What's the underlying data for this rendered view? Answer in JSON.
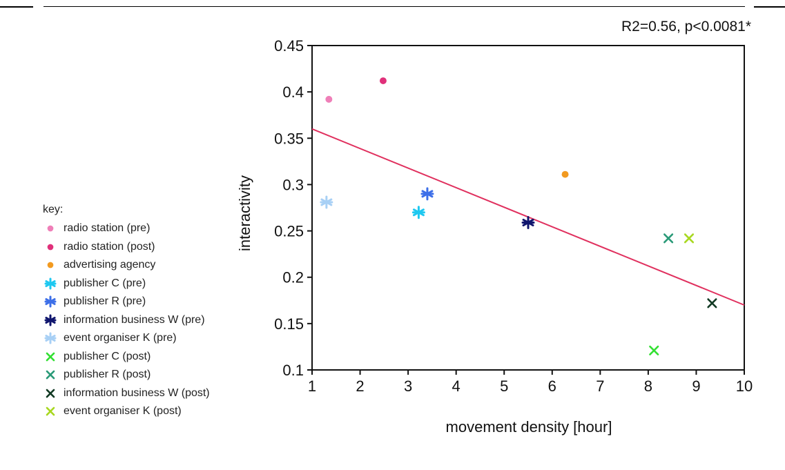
{
  "chart_data": {
    "type": "scatter",
    "title": "",
    "annotation": "R2=0.56, p<0.0081*",
    "xlabel": "movement density [hour]",
    "ylabel": "interactivity",
    "xlim": [
      1,
      10
    ],
    "ylim": [
      0.1,
      0.45
    ],
    "x_ticks": [
      "1",
      "2",
      "3",
      "4",
      "5",
      "6",
      "7",
      "8",
      "9",
      "10"
    ],
    "y_ticks": [
      "0.1",
      "0.15",
      "0.2",
      "0.25",
      "0.3",
      "0.35",
      "0.4",
      "0.45"
    ],
    "grid": false,
    "legend_title": "key:",
    "legend_position": "left",
    "trend_line": {
      "color": "#e0305e",
      "points": [
        [
          1,
          0.36
        ],
        [
          10,
          0.17
        ]
      ]
    },
    "series": [
      {
        "name": "radio station (pre)",
        "marker": "circle",
        "color": "#ef7fb8",
        "x": [
          1.35
        ],
        "y": [
          0.392
        ]
      },
      {
        "name": "radio station (post)",
        "marker": "circle",
        "color": "#e0307a",
        "x": [
          2.48
        ],
        "y": [
          0.412
        ]
      },
      {
        "name": "advertising agency",
        "marker": "circle",
        "color": "#f29a20",
        "x": [
          6.27
        ],
        "y": [
          0.311
        ]
      },
      {
        "name": "publisher C (pre)",
        "marker": "asterisk",
        "color": "#1ec8f0",
        "x": [
          3.22
        ],
        "y": [
          0.27
        ]
      },
      {
        "name": "publisher R (pre)",
        "marker": "asterisk",
        "color": "#3d6fe8",
        "x": [
          3.4
        ],
        "y": [
          0.29
        ]
      },
      {
        "name": "information business W (pre)",
        "marker": "asterisk",
        "color": "#10166e",
        "x": [
          5.5
        ],
        "y": [
          0.259
        ]
      },
      {
        "name": "event organiser K (pre)",
        "marker": "asterisk",
        "color": "#a8d0f5",
        "x": [
          1.3
        ],
        "y": [
          0.281
        ]
      },
      {
        "name": "publisher C (post)",
        "marker": "cross",
        "color": "#33e033",
        "x": [
          8.12
        ],
        "y": [
          0.121
        ]
      },
      {
        "name": "publisher R (post)",
        "marker": "cross",
        "color": "#2a9a78",
        "x": [
          8.42
        ],
        "y": [
          0.242
        ]
      },
      {
        "name": "information business W (post)",
        "marker": "cross",
        "color": "#123a24",
        "x": [
          9.33
        ],
        "y": [
          0.172
        ]
      },
      {
        "name": "event organiser K (post)",
        "marker": "cross",
        "color": "#a8d820",
        "x": [
          8.85
        ],
        "y": [
          0.242
        ]
      }
    ]
  }
}
